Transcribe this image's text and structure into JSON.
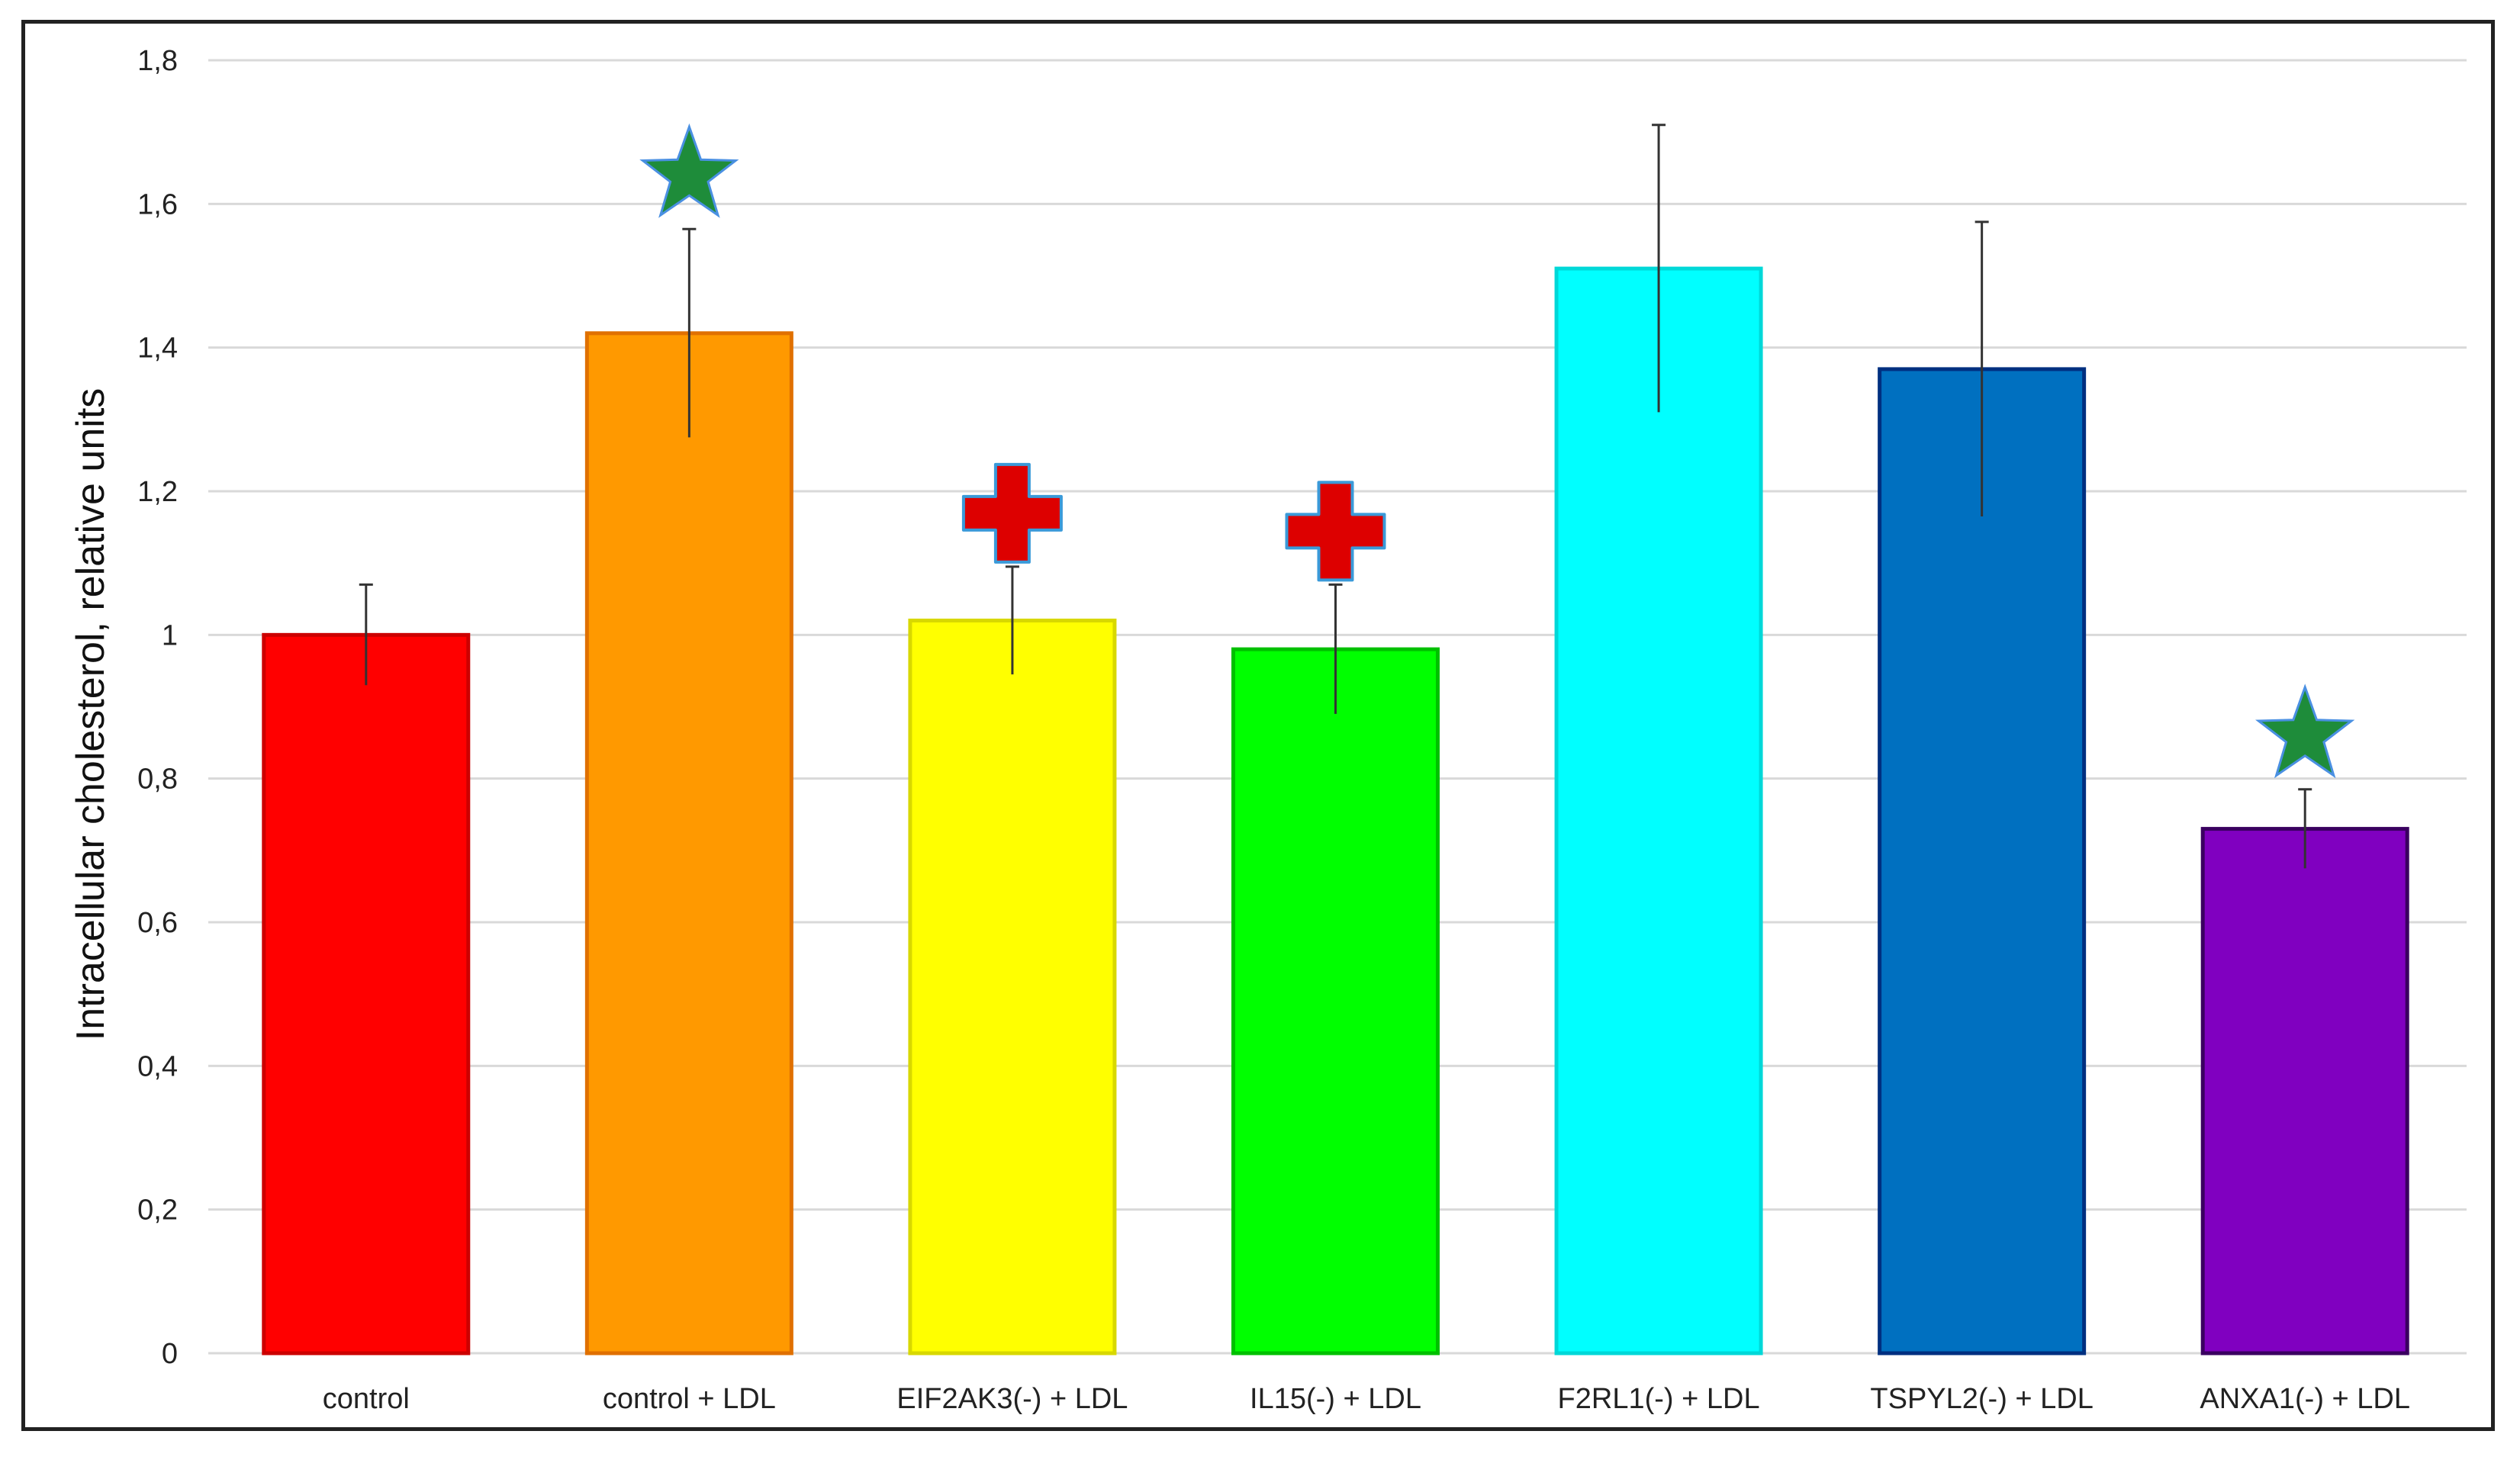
{
  "chart_data": {
    "type": "bar",
    "title": "",
    "xlabel": "",
    "ylabel": "Intracellular cholesterol, relative units",
    "ylim": [
      0,
      1.8
    ],
    "yticks": [
      "0",
      "0,2",
      "0,4",
      "0,6",
      "0,8",
      "1",
      "1,2",
      "1,4",
      "1,6",
      "1,8"
    ],
    "ytick_values": [
      0,
      0.2,
      0.4,
      0.6,
      0.8,
      1.0,
      1.2,
      1.4,
      1.6,
      1.8
    ],
    "grid": "horizontal",
    "categories": [
      "control",
      "control + LDL",
      "EIF2AK3(-) + LDL",
      "IL15(-) + LDL",
      "F2RL1(-) + LDL",
      "TSPYL2(-) + LDL",
      "ANXA1(-) + LDL"
    ],
    "values": [
      1.0,
      1.42,
      1.02,
      0.98,
      1.51,
      1.37,
      0.73
    ],
    "errors": [
      0.07,
      0.145,
      0.075,
      0.09,
      0.2,
      0.205,
      0.055
    ],
    "colors": [
      "#ff0000",
      "#ff9900",
      "#ffff00",
      "#00ff00",
      "#00ffff",
      "#0070c0",
      "#8000c0"
    ],
    "edge_colors": [
      "#cc0000",
      "#e07000",
      "#d8d800",
      "#00c000",
      "#00d8d8",
      "#002f80",
      "#3a0060"
    ],
    "markers": [
      {
        "category_index": 1,
        "shape": "star",
        "color": "#1e8c3a"
      },
      {
        "category_index": 2,
        "shape": "cross",
        "color": "#dd0000"
      },
      {
        "category_index": 3,
        "shape": "cross",
        "color": "#dd0000"
      },
      {
        "category_index": 6,
        "shape": "star",
        "color": "#1e8c3a"
      }
    ]
  }
}
